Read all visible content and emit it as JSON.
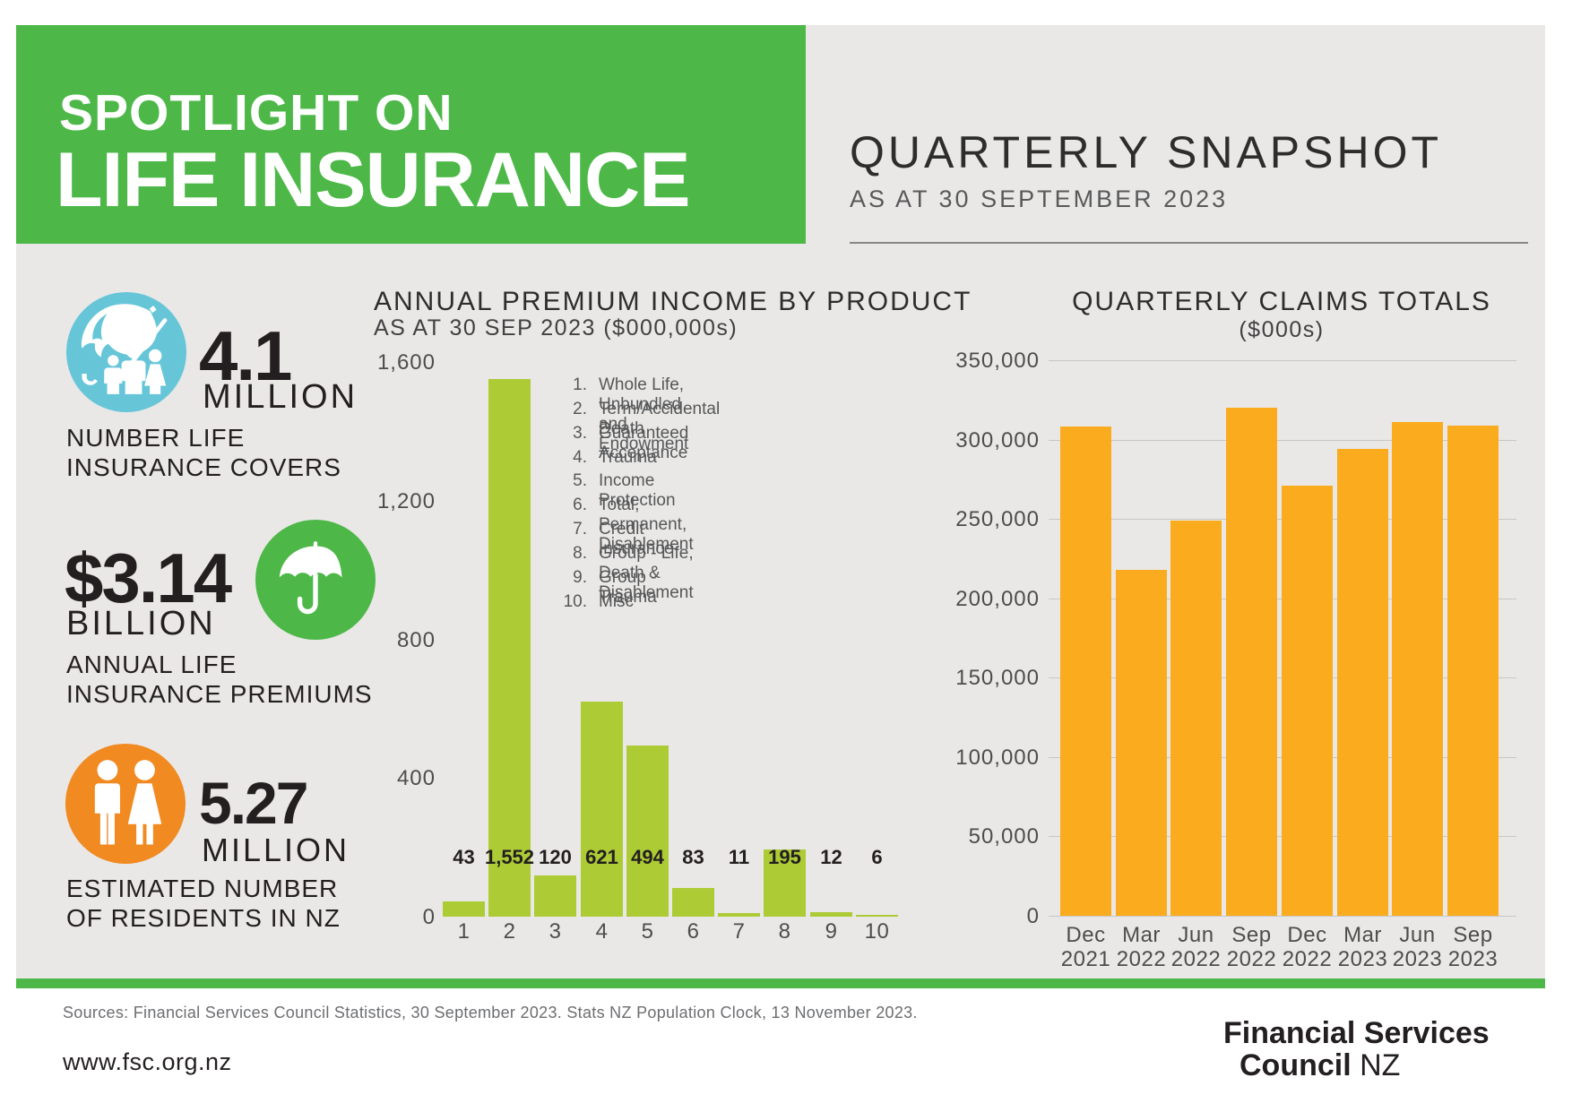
{
  "colors": {
    "green": "#4db848",
    "lime_bar": "#accb35",
    "orange_bar": "#fbab1e",
    "blue_circle": "#66c6d8",
    "green_circle": "#4db848",
    "orange_circle": "#f08a21",
    "panel_bg": "#e9e8e6",
    "dark_text": "#231f20",
    "gray_text": "#4d4d4d",
    "gridline": "#c7c7c6"
  },
  "header": {
    "kicker": "SPOTLIGHT ON",
    "title": "LIFE INSURANCE",
    "snapshot_title": "QUARTERLY SNAPSHOT",
    "snapshot_subtitle": "AS AT 30 SEPTEMBER 2023"
  },
  "stats": [
    {
      "icon": "family-umbrella-icon",
      "circle_color": "#66c6d8",
      "value": "4.1",
      "unit": "MILLION",
      "caption_line1": "NUMBER LIFE",
      "caption_line2": "INSURANCE COVERS"
    },
    {
      "icon": "umbrella-icon",
      "circle_color": "#4db848",
      "value": "$3.14",
      "unit": "BILLION",
      "caption_line1": "ANNUAL LIFE",
      "caption_line2": "INSURANCE PREMIUMS"
    },
    {
      "icon": "man-woman-icon",
      "circle_color": "#f08a21",
      "value": "5.27",
      "unit": "MILLION",
      "caption_line1": "ESTIMATED NUMBER",
      "caption_line2": "OF RESIDENTS IN NZ"
    }
  ],
  "chart_data": [
    {
      "id": "annual-premium-income-by-product",
      "type": "bar",
      "title": "ANNUAL PREMIUM INCOME BY PRODUCT",
      "subtitle": "AS AT 30 SEP 2023 ($000,000s)",
      "categories": [
        "1",
        "2",
        "3",
        "4",
        "5",
        "6",
        "7",
        "8",
        "9",
        "10"
      ],
      "values": [
        43,
        1552,
        120,
        621,
        494,
        83,
        11,
        195,
        12,
        6
      ],
      "value_labels": [
        "43",
        "1,552",
        "120",
        "621",
        "494",
        "83",
        "11",
        "195",
        "12",
        "6"
      ],
      "ylim": [
        0,
        1600
      ],
      "yticks": [
        1600,
        1200,
        800,
        400,
        0
      ],
      "ytick_labels": [
        "1,600",
        "1,200",
        "800",
        "400",
        "0"
      ],
      "grid": false,
      "bar_color": "#accb35",
      "legend_position": "right",
      "legend": [
        {
          "num": "1.",
          "label": "Whole Life, Unbundled and Endowment"
        },
        {
          "num": "2.",
          "label": "Term/Accidental Death"
        },
        {
          "num": "3.",
          "label": "Guaranteed Acceptance"
        },
        {
          "num": "4.",
          "label": "Trauma"
        },
        {
          "num": "5.",
          "label": "Income Protection"
        },
        {
          "num": "6.",
          "label": "Total, Permanent, Disablement"
        },
        {
          "num": "7.",
          "label": "Credit Insurance"
        },
        {
          "num": "8.",
          "label": "Group - Life, Death & Disablement"
        },
        {
          "num": "9.",
          "label": "Group - Trauma"
        },
        {
          "num": "10.",
          "label": "Misc"
        }
      ]
    },
    {
      "id": "quarterly-claims-totals",
      "type": "bar",
      "title": "QUARTERLY CLAIMS TOTALS",
      "subtitle": "($000s)",
      "categories": [
        "Dec 2021",
        "Mar 2022",
        "Jun 2022",
        "Sep 2022",
        "Dec 2022",
        "Mar 2023",
        "Jun 2023",
        "Sep 2023"
      ],
      "values": [
        308000,
        218000,
        249000,
        320000,
        271000,
        294000,
        311000,
        309000
      ],
      "ylim": [
        0,
        350000
      ],
      "yticks": [
        350000,
        300000,
        250000,
        200000,
        150000,
        100000,
        50000,
        0
      ],
      "ytick_labels": [
        "350,000",
        "300,000",
        "250,000",
        "200,000",
        "150,000",
        "100,000",
        "50,000",
        "0"
      ],
      "grid": true,
      "bar_color": "#fbab1e"
    }
  ],
  "footer": {
    "sources": "Sources: Financial Services Council Statistics, 30 September 2023. Stats NZ Population Clock, 13 November 2023.",
    "website": "www.fsc.org.nz",
    "logo_line1": "Financial Services",
    "logo_line2_bold": "Council",
    "logo_line2_regular": " NZ"
  }
}
